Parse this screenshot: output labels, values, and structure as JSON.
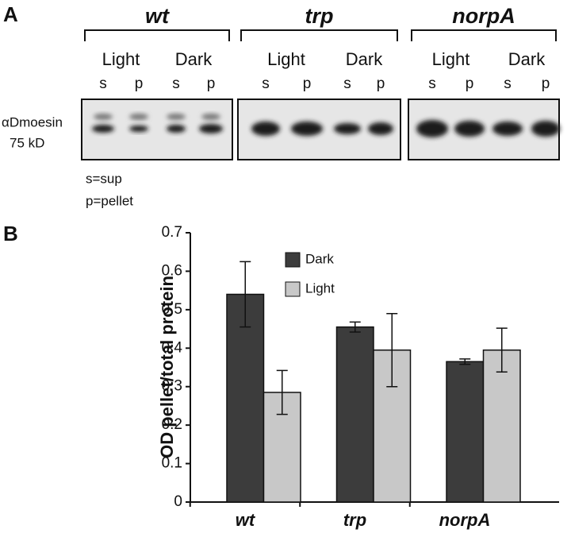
{
  "panel_a": {
    "label": "A",
    "genotypes": [
      {
        "name": "wt",
        "conditions": [
          "Light",
          "Dark"
        ],
        "lanes": [
          "s",
          "p",
          "s",
          "p"
        ]
      },
      {
        "name": "trp",
        "conditions": [
          "Light",
          "Dark"
        ],
        "lanes": [
          "s",
          "p",
          "s",
          "p"
        ]
      },
      {
        "name": "norpA",
        "conditions": [
          "Light",
          "Dark"
        ],
        "lanes": [
          "s",
          "p",
          "s",
          "p"
        ]
      }
    ],
    "antibody": "αDmoesin",
    "size": "75 kD",
    "legend": [
      "s=sup",
      "p=pellet"
    ]
  },
  "panel_b": {
    "label": "B"
  },
  "chart_data": {
    "type": "bar",
    "y_label": "OD pellet/total protein",
    "categories": [
      "wt",
      "trp",
      "norpA"
    ],
    "series": [
      {
        "name": "Dark",
        "color": "#3c3c3c",
        "values": [
          0.54,
          0.455,
          0.365
        ],
        "errors": [
          0.085,
          0.013,
          0.007
        ]
      },
      {
        "name": "Light",
        "color": "#c8c8c8",
        "values": [
          0.285,
          0.395,
          0.395
        ],
        "errors": [
          0.057,
          0.095,
          0.057
        ]
      }
    ],
    "ylim": [
      0,
      0.7
    ],
    "yticks": [
      0,
      0.1,
      0.2,
      0.3,
      0.4,
      0.5,
      0.6,
      0.7
    ]
  }
}
